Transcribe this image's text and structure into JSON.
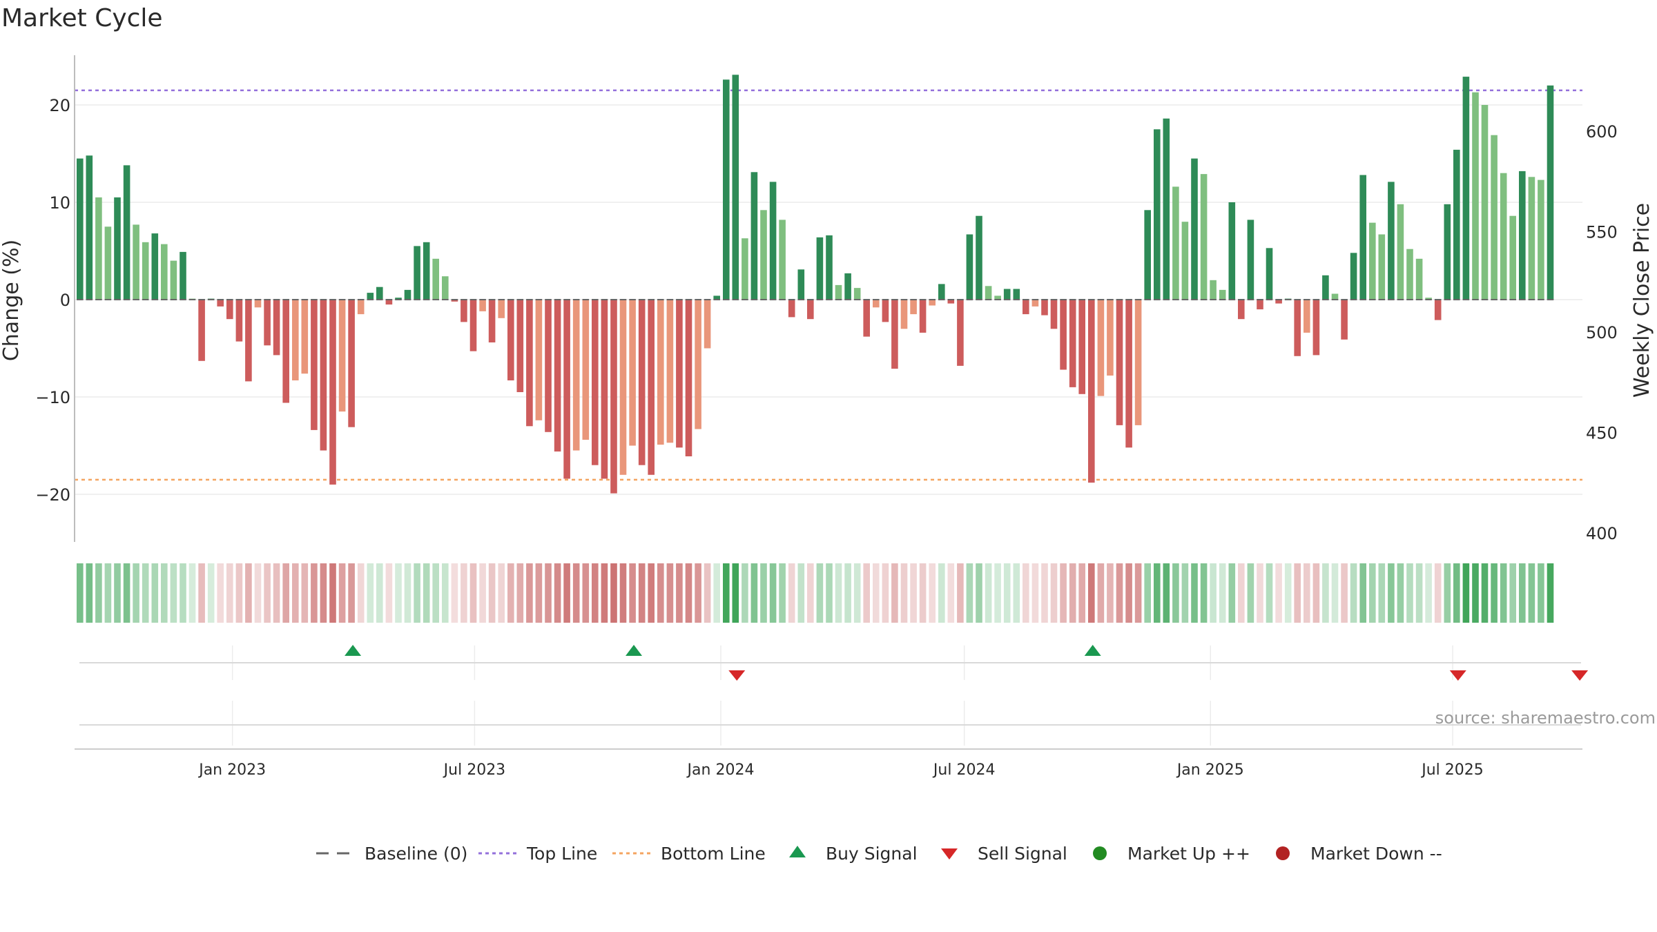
{
  "chart_data": {
    "type": "bar",
    "title": "Market Cycle",
    "ylabel": "Change (%)",
    "y2label": "Weekly Close Price",
    "ylim": [
      -25,
      25
    ],
    "y2lim": [
      400,
      620
    ],
    "y_ticks": [
      20,
      10,
      0,
      -10,
      -20
    ],
    "y_tick_labels": [
      "20",
      "10",
      "0",
      "−10",
      "−20"
    ],
    "y2_ticks": [
      600,
      550,
      500,
      450,
      400
    ],
    "y2_tick_labels": [
      "600",
      "550",
      "500",
      "450",
      "400"
    ],
    "top_line": 21.5,
    "bottom_line": -18.5,
    "x_range": [
      "2022-09-05",
      "2025-10-06"
    ],
    "x_ticks": [
      {
        "date": "2023-01-01",
        "label": "Jan 2023"
      },
      {
        "date": "2023-07-01",
        "label": "Jul 2023"
      },
      {
        "date": "2024-01-01",
        "label": "Jan 2024"
      },
      {
        "date": "2024-07-01",
        "label": "Jul 2024"
      },
      {
        "date": "2025-01-01",
        "label": "Jan 2025"
      },
      {
        "date": "2025-07-01",
        "label": "Jul 2025"
      }
    ],
    "start_date": "2022-09-09",
    "values": [
      14.5,
      14.8,
      10.5,
      7.5,
      10.5,
      13.8,
      7.7,
      5.9,
      6.8,
      5.7,
      4.0,
      4.9,
      0.1,
      -6.3,
      0.1,
      -0.7,
      -2.0,
      -4.3,
      -8.4,
      -0.8,
      -4.7,
      -5.7,
      -10.6,
      -8.3,
      -7.6,
      -13.4,
      -15.5,
      -19.0,
      -11.5,
      -13.1,
      -1.5,
      0.7,
      1.3,
      -0.5,
      0.2,
      1.0,
      5.5,
      5.9,
      4.2,
      2.4,
      -0.2,
      -2.3,
      -5.3,
      -1.2,
      -4.4,
      -1.9,
      -8.3,
      -9.5,
      -13.0,
      -12.4,
      -13.6,
      -15.6,
      -18.4,
      -15.5,
      -14.4,
      -17.0,
      -18.4,
      -19.9,
      -18.0,
      -15.0,
      -17.0,
      -18.0,
      -14.9,
      -14.7,
      -15.2,
      -16.1,
      -13.3,
      -5.0,
      0.4,
      22.6,
      23.1,
      6.3,
      13.1,
      9.2,
      12.1,
      8.2,
      -1.8,
      3.1,
      -2.0,
      6.4,
      6.6,
      1.5,
      2.7,
      1.2,
      -3.8,
      -0.8,
      -2.3,
      -7.1,
      -3.0,
      -1.5,
      -3.4,
      -0.6,
      1.6,
      -0.4,
      -6.8,
      6.7,
      8.6,
      1.4,
      0.4,
      1.1,
      1.1,
      -1.5,
      -0.7,
      -1.6,
      -3.0,
      -7.2,
      -9.0,
      -9.7,
      -18.8,
      -9.9,
      -7.8,
      -12.9,
      -15.2,
      -12.9,
      9.2,
      17.5,
      18.6,
      11.6,
      8.0,
      14.5,
      12.9,
      2.0,
      1.0,
      10.0,
      -2.0,
      8.2,
      -1.0,
      5.3,
      -0.4,
      0.1,
      -5.8,
      -3.4,
      -5.7,
      2.5,
      0.6,
      -4.1,
      4.8,
      12.8,
      7.9,
      6.7,
      12.1,
      9.8,
      5.2,
      4.2,
      0.2,
      -2.1,
      9.8,
      15.4,
      22.9,
      21.3,
      20.0,
      16.9,
      13.0,
      8.6,
      13.2,
      12.6,
      12.3,
      22.0
    ],
    "buy_signals": [
      "2023-04-01",
      "2023-10-28",
      "2024-10-05"
    ],
    "sell_signals": [
      "2024-01-13",
      "2025-07-05",
      "2025-10-04"
    ],
    "legend": [
      "Baseline (0)",
      "Top Line",
      "Bottom Line",
      "Buy Signal",
      "Sell Signal",
      "Market Up ++",
      "Market Down --"
    ],
    "source": "source: sharemaestro.com",
    "colors": {
      "strong_up": "#2e8b57",
      "up": "#7fbf7f",
      "strong_down": "#cd5c5c",
      "down": "#e9967a",
      "top_line": "#9370db",
      "bottom_line": "#f4a460",
      "buy": "#1a9850",
      "sell": "#d62728",
      "market_up": "#228b22",
      "market_down": "#b22222",
      "baseline": "#666666"
    }
  }
}
